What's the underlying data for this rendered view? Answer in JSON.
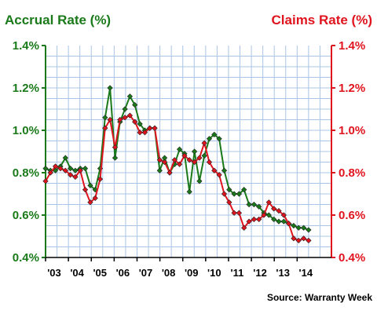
{
  "chart_data": {
    "type": "line",
    "title_left": "Accrual Rate (%)",
    "title_right": "Claims Rate (%)",
    "source": "Source: Warranty Week",
    "ylim": [
      0.4,
      1.4
    ],
    "y_ticks": [
      "0.4%",
      "0.6%",
      "0.8%",
      "1.0%",
      "1.2%",
      "1.4%"
    ],
    "x_ticks": [
      "'03",
      "'04",
      "'05",
      "'06",
      "'07",
      "'08",
      "'09",
      "'10",
      "'11",
      "'12",
      "'13",
      "'14"
    ],
    "x_start": 2003,
    "grid": true,
    "series": [
      {
        "name": "Accrual Rate (%)",
        "color": "#1a7a1a",
        "axis": "left",
        "values": [
          0.82,
          0.81,
          0.81,
          0.83,
          0.87,
          0.82,
          0.81,
          0.82,
          0.82,
          0.74,
          0.72,
          0.82,
          1.06,
          1.2,
          0.87,
          1.04,
          1.1,
          1.16,
          1.12,
          1.03,
          1.0,
          1.01,
          1.01,
          0.81,
          0.87,
          0.8,
          0.84,
          0.91,
          0.89,
          0.71,
          0.9,
          0.76,
          0.88,
          0.96,
          0.98,
          0.96,
          0.81,
          0.72,
          0.7,
          0.7,
          0.72,
          0.65,
          0.65,
          0.64,
          0.61,
          0.6,
          0.58,
          0.57,
          0.57,
          0.56,
          0.55,
          0.54,
          0.54,
          0.53
        ]
      },
      {
        "name": "Claims Rate (%)",
        "color": "#e0141e",
        "axis": "right",
        "values": [
          0.76,
          0.8,
          0.83,
          0.82,
          0.81,
          0.79,
          0.78,
          0.81,
          0.72,
          0.66,
          0.68,
          0.77,
          1.01,
          1.05,
          0.92,
          1.05,
          1.06,
          1.07,
          1.04,
          0.99,
          0.99,
          1.01,
          1.01,
          0.86,
          0.85,
          0.8,
          0.86,
          0.84,
          0.88,
          0.86,
          0.85,
          0.87,
          0.94,
          0.85,
          0.81,
          0.79,
          0.7,
          0.66,
          0.61,
          0.61,
          0.54,
          0.57,
          0.58,
          0.58,
          0.6,
          0.66,
          0.63,
          0.62,
          0.6,
          0.56,
          0.49,
          0.48,
          0.49,
          0.48
        ]
      }
    ]
  }
}
